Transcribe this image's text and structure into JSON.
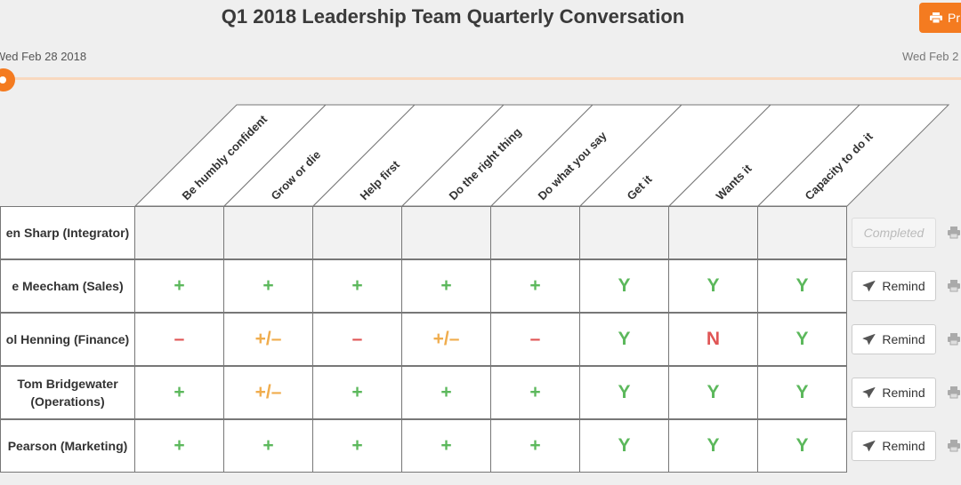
{
  "header": {
    "title": "Q1 2018 Leadership Team Quarterly Conversation",
    "print_label": "Pr",
    "start_date": "Wed Feb 28 2018",
    "end_date": "Wed Feb 2"
  },
  "columns": [
    "Be humbly confident",
    "Grow or die",
    "Help first",
    "Do the right thing",
    "Do what you say",
    "Get it",
    "Wants it",
    "Capacity to do it"
  ],
  "rows": [
    {
      "name": [
        "en Sharp (Integrator)"
      ],
      "cells": [
        "",
        "",
        "",
        "",
        "",
        "",
        "",
        ""
      ],
      "action": "Completed"
    },
    {
      "name": [
        "e Meecham (Sales)"
      ],
      "cells": [
        "+",
        "+",
        "+",
        "+",
        "+",
        "Y",
        "Y",
        "Y"
      ],
      "action": "Remind"
    },
    {
      "name": [
        "ol Henning (Finance)"
      ],
      "cells": [
        "–",
        "+/–",
        "–",
        "+/–",
        "–",
        "Y",
        "N",
        "Y"
      ],
      "action": "Remind"
    },
    {
      "name": [
        "Tom Bridgewater",
        "(Operations)"
      ],
      "cells": [
        "+",
        "+/–",
        "+",
        "+",
        "+",
        "Y",
        "Y",
        "Y"
      ],
      "action": "Remind"
    },
    {
      "name": [
        "Pearson (Marketing)"
      ],
      "cells": [
        "+",
        "+",
        "+",
        "+",
        "+",
        "Y",
        "Y",
        "Y"
      ],
      "action": "Remind"
    }
  ],
  "colors": {
    "accent": "#f47b20",
    "positive": "#5cb85c",
    "mixed": "#f0ad4e",
    "negative": "#e05555"
  },
  "icons": {
    "print": "print-icon",
    "remind": "paper-plane-icon"
  }
}
